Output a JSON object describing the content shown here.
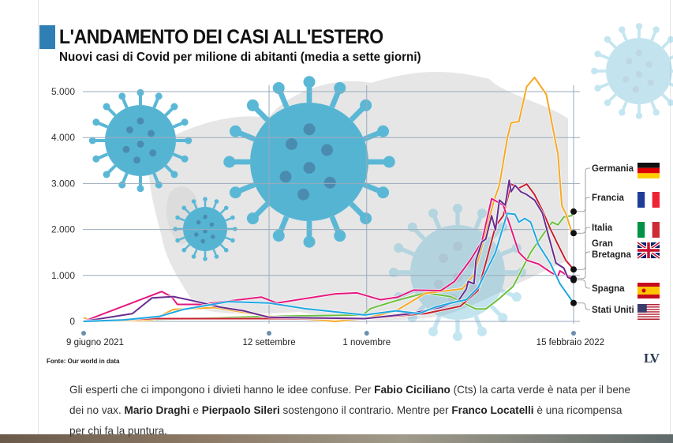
{
  "header": {
    "title": "L'ANDAMENTO DEI CASI ALL'ESTERO",
    "subtitle": "Nuovi casi di Covid per milione di abitanti (media a sette giorni)"
  },
  "source": "Fonte: Our world in data",
  "logo": "LV",
  "paragraph": {
    "t1": "Gli esperti che ci impongono i divieti hanno le idee confuse. Per ",
    "b1": "Fabio Ciciliano",
    "t2": " (Cts) la carta verde è nata per il bene dei no vax. ",
    "b2": "Mario Draghi",
    "t3": " e ",
    "b3": "Pierpaolo Sileri",
    "t4": " sostengono il contrario. Mentre per ",
    "b4": "Franco Locatelli",
    "t5": " è una ricompensa per chi fa la puntura."
  },
  "chart_data": {
    "type": "line",
    "title": "L'ANDAMENTO DEI CASI ALL'ESTERO",
    "subtitle": "Nuovi casi di Covid per milione di abitanti (media a sette giorni)",
    "xlim": [
      "2021-06-09",
      "2022-02-15"
    ],
    "ylim": [
      0,
      5000
    ],
    "yticks": [
      {
        "value": 0,
        "label": "0"
      },
      {
        "value": 1000,
        "label": "1.000"
      },
      {
        "value": 2000,
        "label": "2.000"
      },
      {
        "value": 3000,
        "label": "3.000"
      },
      {
        "value": 4000,
        "label": "4.000"
      },
      {
        "value": 5000,
        "label": "5.000"
      }
    ],
    "xticks": [
      {
        "date": "2021-06-09",
        "label": "9 giugno 2021"
      },
      {
        "date": "2021-09-12",
        "label": "12 settembre"
      },
      {
        "date": "2021-11-01",
        "label": "1 novembre"
      },
      {
        "date": "2022-02-15",
        "label": "15 febbraio 2022"
      }
    ],
    "grid": true,
    "legend_placement": "right",
    "series": [
      {
        "name": "Germania",
        "color": "#6cbf3e",
        "flag": [
          "#111111",
          "#dd0000",
          "#ffce00"
        ],
        "flag_type": "horizontal",
        "points": [
          [
            "2021-06-09",
            0
          ],
          [
            "2021-09-12",
            110
          ],
          [
            "2021-10-30",
            140
          ],
          [
            "2021-11-03",
            280
          ],
          [
            "2021-11-16",
            450
          ],
          [
            "2021-12-01",
            620
          ],
          [
            "2021-12-14",
            540
          ],
          [
            "2021-12-25",
            310
          ],
          [
            "2021-12-27",
            270
          ],
          [
            "2022-01-01",
            270
          ],
          [
            "2022-01-08",
            500
          ],
          [
            "2022-01-15",
            760
          ],
          [
            "2022-01-24",
            1500
          ],
          [
            "2022-01-31",
            1930
          ],
          [
            "2022-02-04",
            2160
          ],
          [
            "2022-02-07",
            2100
          ],
          [
            "2022-02-10",
            2270
          ],
          [
            "2022-02-14",
            2300
          ],
          [
            "2022-02-15",
            2390
          ]
        ]
      },
      {
        "name": "Francia",
        "color": "#f7a823",
        "flag": [
          "#1f3c96",
          "#ffffff",
          "#ee2436"
        ],
        "flag_type": "vertical",
        "points": [
          [
            "2021-06-09",
            80
          ],
          [
            "2021-06-14",
            0
          ],
          [
            "2021-07-14",
            30
          ],
          [
            "2021-07-25",
            260
          ],
          [
            "2021-08-15",
            300
          ],
          [
            "2021-09-12",
            110
          ],
          [
            "2021-10-16",
            0
          ],
          [
            "2021-10-31",
            60
          ],
          [
            "2021-11-16",
            230
          ],
          [
            "2021-12-01",
            610
          ],
          [
            "2021-12-20",
            710
          ],
          [
            "2021-12-26",
            1020
          ],
          [
            "2021-12-30",
            1620
          ],
          [
            "2022-01-05",
            2600
          ],
          [
            "2022-01-08",
            2970
          ],
          [
            "2022-01-12",
            3980
          ],
          [
            "2022-01-14",
            4320
          ],
          [
            "2022-01-18",
            4350
          ],
          [
            "2022-01-22",
            5110
          ],
          [
            "2022-01-26",
            5310
          ],
          [
            "2022-02-01",
            4940
          ],
          [
            "2022-02-07",
            3640
          ],
          [
            "2022-02-09",
            2510
          ],
          [
            "2022-02-11",
            2350
          ],
          [
            "2022-02-14",
            1950
          ],
          [
            "2022-02-15",
            1920
          ]
        ]
      },
      {
        "name": "Italia",
        "color": "#c8202f",
        "flag": [
          "#009246",
          "#ffffff",
          "#ce2b37"
        ],
        "flag_type": "vertical",
        "points": [
          [
            "2021-06-09",
            0
          ],
          [
            "2021-07-14",
            60
          ],
          [
            "2021-10-31",
            60
          ],
          [
            "2021-12-01",
            170
          ],
          [
            "2021-12-19",
            330
          ],
          [
            "2021-12-28",
            670
          ],
          [
            "2022-01-01",
            1270
          ],
          [
            "2022-01-06",
            2070
          ],
          [
            "2022-01-10",
            2300
          ],
          [
            "2022-01-14",
            2990
          ],
          [
            "2022-01-18",
            2900
          ],
          [
            "2022-01-22",
            2990
          ],
          [
            "2022-01-26",
            2760
          ],
          [
            "2022-01-30",
            2420
          ],
          [
            "2022-02-03",
            2020
          ],
          [
            "2022-02-07",
            1670
          ],
          [
            "2022-02-11",
            1330
          ],
          [
            "2022-02-15",
            1130
          ]
        ]
      },
      {
        "name": "Gran Bretagna",
        "color": "#e5197e",
        "flag": [
          "#012169",
          "#ffffff",
          "#c8102e"
        ],
        "flag_type": "uk",
        "points": [
          [
            "2021-06-09",
            0
          ],
          [
            "2021-07-19",
            650
          ],
          [
            "2021-07-24",
            540
          ],
          [
            "2021-07-27",
            370
          ],
          [
            "2021-08-08",
            370
          ],
          [
            "2021-09-08",
            530
          ],
          [
            "2021-09-16",
            400
          ],
          [
            "2021-10-16",
            600
          ],
          [
            "2021-10-27",
            620
          ],
          [
            "2021-11-08",
            470
          ],
          [
            "2021-11-17",
            530
          ],
          [
            "2021-11-25",
            680
          ],
          [
            "2021-12-09",
            670
          ],
          [
            "2021-12-16",
            870
          ],
          [
            "2021-12-24",
            1330
          ],
          [
            "2021-12-30",
            1730
          ],
          [
            "2022-01-04",
            2670
          ],
          [
            "2022-01-10",
            2530
          ],
          [
            "2022-01-12",
            2270
          ],
          [
            "2022-01-18",
            1500
          ],
          [
            "2022-01-22",
            1330
          ],
          [
            "2022-01-28",
            1250
          ],
          [
            "2022-02-04",
            1050
          ],
          [
            "2022-02-07",
            990
          ],
          [
            "2022-02-08",
            1100
          ],
          [
            "2022-02-11",
            1020
          ],
          [
            "2022-02-15",
            930
          ]
        ]
      },
      {
        "name": "Spagna",
        "color": "#6a2c91",
        "flag": [
          "#c60b1e",
          "#ffc400",
          "#c60b1e"
        ],
        "flag_type": "spain",
        "points": [
          [
            "2021-06-09",
            0
          ],
          [
            "2021-07-04",
            170
          ],
          [
            "2021-07-14",
            510
          ],
          [
            "2021-07-25",
            540
          ],
          [
            "2021-08-04",
            450
          ],
          [
            "2021-08-18",
            310
          ],
          [
            "2021-08-30",
            230
          ],
          [
            "2021-09-12",
            90
          ],
          [
            "2021-10-31",
            60
          ],
          [
            "2021-11-24",
            170
          ],
          [
            "2021-12-09",
            310
          ],
          [
            "2021-12-18",
            450
          ],
          [
            "2021-12-22",
            700
          ],
          [
            "2021-12-23",
            870
          ],
          [
            "2021-12-26",
            820
          ],
          [
            "2021-12-27",
            1330
          ],
          [
            "2021-12-30",
            1730
          ],
          [
            "2022-01-01",
            1790
          ],
          [
            "2022-01-04",
            2300
          ],
          [
            "2022-01-06",
            1990
          ],
          [
            "2022-01-08",
            2640
          ],
          [
            "2022-01-11",
            2530
          ],
          [
            "2022-01-13",
            3070
          ],
          [
            "2022-01-14",
            2820
          ],
          [
            "2022-01-16",
            2960
          ],
          [
            "2022-01-19",
            2820
          ],
          [
            "2022-01-22",
            2760
          ],
          [
            "2022-01-26",
            2640
          ],
          [
            "2022-01-30",
            2360
          ],
          [
            "2022-02-03",
            1730
          ],
          [
            "2022-02-06",
            1270
          ],
          [
            "2022-02-10",
            1160
          ],
          [
            "2022-02-12",
            960
          ],
          [
            "2022-02-15",
            900
          ]
        ]
      },
      {
        "name": "Stati Uniti",
        "color": "#1ea7e1",
        "flag": [
          "#b22234",
          "#ffffff",
          "#3c3b6e"
        ],
        "flag_type": "us",
        "points": [
          [
            "2021-06-09",
            0
          ],
          [
            "2021-06-29",
            30
          ],
          [
            "2021-07-18",
            110
          ],
          [
            "2021-07-30",
            260
          ],
          [
            "2021-08-22",
            430
          ],
          [
            "2021-09-12",
            400
          ],
          [
            "2021-09-30",
            280
          ],
          [
            "2021-10-31",
            140
          ],
          [
            "2021-11-16",
            230
          ],
          [
            "2021-11-28",
            170
          ],
          [
            "2021-12-06",
            310
          ],
          [
            "2021-12-16",
            420
          ],
          [
            "2021-12-22",
            470
          ],
          [
            "2021-12-28",
            730
          ],
          [
            "2022-01-06",
            1500
          ],
          [
            "2022-01-12",
            2350
          ],
          [
            "2022-01-16",
            2330
          ],
          [
            "2022-01-18",
            2160
          ],
          [
            "2022-01-21",
            2240
          ],
          [
            "2022-01-24",
            2160
          ],
          [
            "2022-01-28",
            1670
          ],
          [
            "2022-02-03",
            1270
          ],
          [
            "2022-02-08",
            820
          ],
          [
            "2022-02-15",
            400
          ]
        ]
      }
    ]
  }
}
